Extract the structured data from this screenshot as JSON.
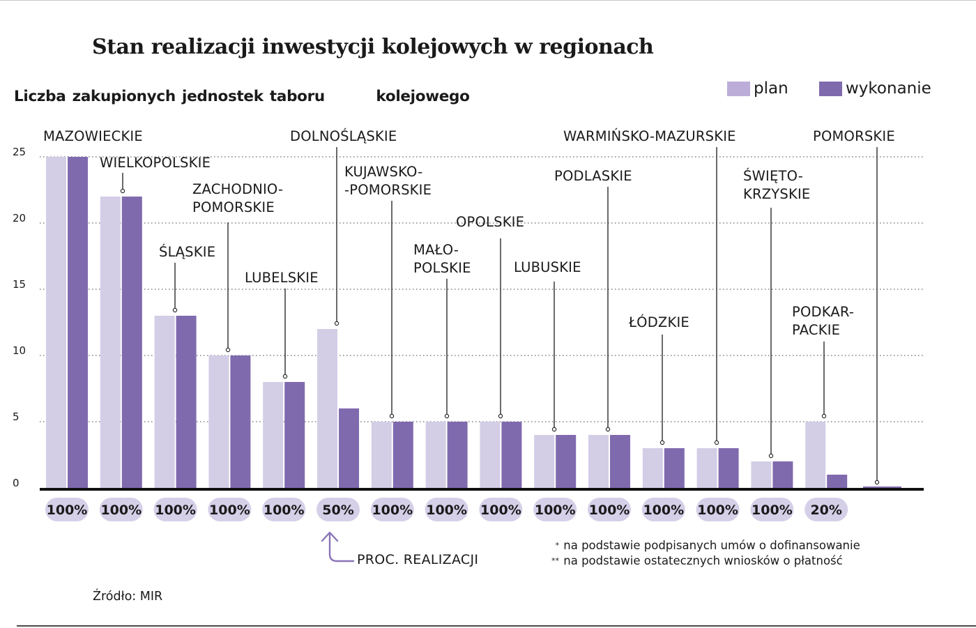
{
  "title": "Stan realizacji inwestycji kolejowych w regionach",
  "subtitle": "Liczba zakupionych jednostek taboru        kolejowego",
  "legend": {
    "plan": "plan",
    "wykonanie": "wykonanie"
  },
  "colors": {
    "plan": "#d4cde6",
    "wykonanie": "#806aae",
    "legend_plan": "#bbadd8",
    "pill": "#d6cfe8",
    "grid": "#666666",
    "axis": "#111111",
    "arrow": "#8a74b8"
  },
  "arrow_label": "PROC. REALIZACJI",
  "notes": [
    {
      "mark": "*",
      "text": "na podstawie podpisanych umów o dofinansowanie"
    },
    {
      "mark": "**",
      "text": "na podstawie ostatecznych wniosków o płatność"
    }
  ],
  "source": "Źródło: MIR",
  "chart_data": {
    "type": "bar",
    "ylim": [
      0,
      25
    ],
    "yticks": [
      "0",
      "5",
      "10",
      "15",
      "20",
      "25"
    ],
    "grid": true,
    "categories": [
      "MAZOWIECKIE",
      "WIELKOPOLSKIE",
      "ŚLĄSKIE",
      "ZACHODNIO-POMORSKIE",
      "LUBELSKIE",
      "DOLNOŚLĄSKIE",
      "KUJAWSKO-POMORSKIE",
      "MAŁOPOLSKIE",
      "OPOLSKIE",
      "LUBUSKIE",
      "PODLASKIE",
      "ŁÓDZKIE",
      "WARMIŃSKO-MAZURSKIE",
      "ŚWIĘTOKRZYSKIE",
      "PODKARPACKIE",
      "POMORSKIE"
    ],
    "label_lines": [
      [
        "MAZOWIECKIE"
      ],
      [
        "WIELKOPOLSKIE"
      ],
      [
        "ŚLĄSKIE"
      ],
      [
        "ZACHODNIO-",
        "POMORSKIE"
      ],
      [
        "LUBELSKIE"
      ],
      [
        "DOLNOŚLĄSKIE"
      ],
      [
        "KUJAWSKO-",
        "-POMORSKIE"
      ],
      [
        "MAŁO-",
        "POLSKIE"
      ],
      [
        "OPOLSKIE"
      ],
      [
        "LUBUSKIE"
      ],
      [
        "PODLASKIE"
      ],
      [
        "ŁÓDZKIE"
      ],
      [
        "WARMIŃSKO-MAZURSKIE"
      ],
      [
        "ŚWIĘTO-",
        "KRZYSKIE"
      ],
      [
        "PODKAR-",
        "PACKIE"
      ],
      [
        "POMORSKIE"
      ]
    ],
    "series": [
      {
        "name": "plan",
        "values": [
          25,
          22,
          13,
          10,
          8,
          12,
          5,
          5,
          5,
          4,
          4,
          3,
          3,
          2,
          5,
          0
        ]
      },
      {
        "name": "wykonanie",
        "values": [
          25,
          22,
          13,
          10,
          8,
          6,
          5,
          5,
          5,
          4,
          4,
          3,
          3,
          2,
          1,
          0
        ]
      }
    ],
    "percent": [
      "100%",
      "100%",
      "100%",
      "100%",
      "100%",
      "50%",
      "100%",
      "100%",
      "100%",
      "100%",
      "100%",
      "100%",
      "100%",
      "100%",
      "20%",
      ""
    ]
  }
}
